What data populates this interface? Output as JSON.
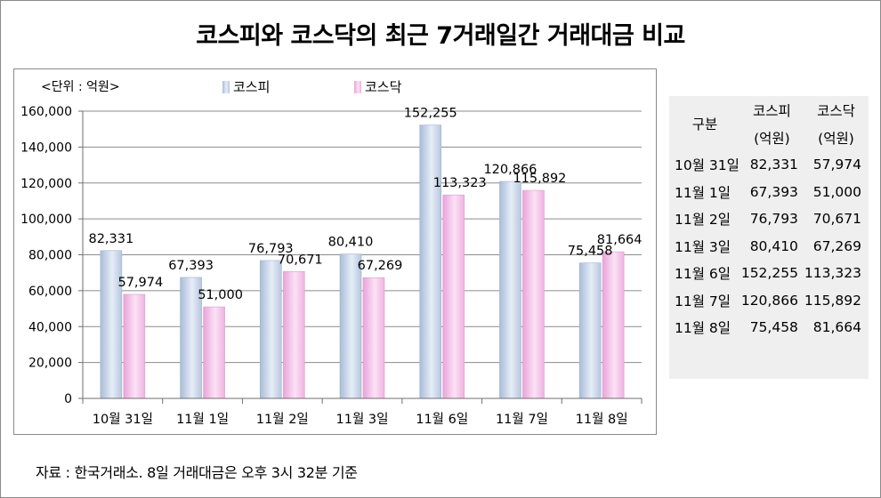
{
  "title": "코스피와 코스닥의 최근 7거래일간 거래대금 비교",
  "source_note": "자료 : 한국거래소. 8일 거래대금은 오후 3시 32분 기준",
  "unit_label": "<단위 : 억원>",
  "table": {
    "header_category": "구분",
    "header_kospi": "코스피",
    "header_kospi_unit": "(억원)",
    "header_kosdaq": "코스닥",
    "header_kosdaq_unit": "(억원)",
    "rows": [
      {
        "date": "10월 31일",
        "kospi": "82,331",
        "kosdaq": "57,974"
      },
      {
        "date": "11월 1일",
        "kospi": "67,393",
        "kosdaq": "51,000"
      },
      {
        "date": "11월 2일",
        "kospi": "76,793",
        "kosdaq": "70,671"
      },
      {
        "date": "11월 3일",
        "kospi": "80,410",
        "kosdaq": "67,269"
      },
      {
        "date": "11월 6일",
        "kospi": "152,255",
        "kosdaq": "113,323"
      },
      {
        "date": "11월 7일",
        "kospi": "120,866",
        "kosdaq": "115,892"
      },
      {
        "date": "11월 8일",
        "kospi": "75,458",
        "kosdaq": "81,664"
      }
    ]
  },
  "chart_data": {
    "type": "bar",
    "categories": [
      "10월 31일",
      "11월 1일",
      "11월 2일",
      "11월 3일",
      "11월 6일",
      "11월 7일",
      "11월 8일"
    ],
    "series": [
      {
        "name": "코스피",
        "values": [
          82331,
          67393,
          76793,
          80410,
          152255,
          120866,
          75458
        ],
        "color": "#c9d7ea"
      },
      {
        "name": "코스닥",
        "values": [
          57974,
          51000,
          70671,
          67269,
          113323,
          115892,
          81664
        ],
        "color": "#f2bfe8"
      }
    ],
    "ylim": [
      0,
      160000
    ],
    "yticks": [
      0,
      20000,
      40000,
      60000,
      80000,
      100000,
      120000,
      140000,
      160000
    ],
    "ytick_labels": [
      "0",
      "20,000",
      "40,000",
      "60,000",
      "80,000",
      "100,000",
      "120,000",
      "140,000",
      "160,000"
    ],
    "grid": true,
    "legend_position": "top"
  }
}
